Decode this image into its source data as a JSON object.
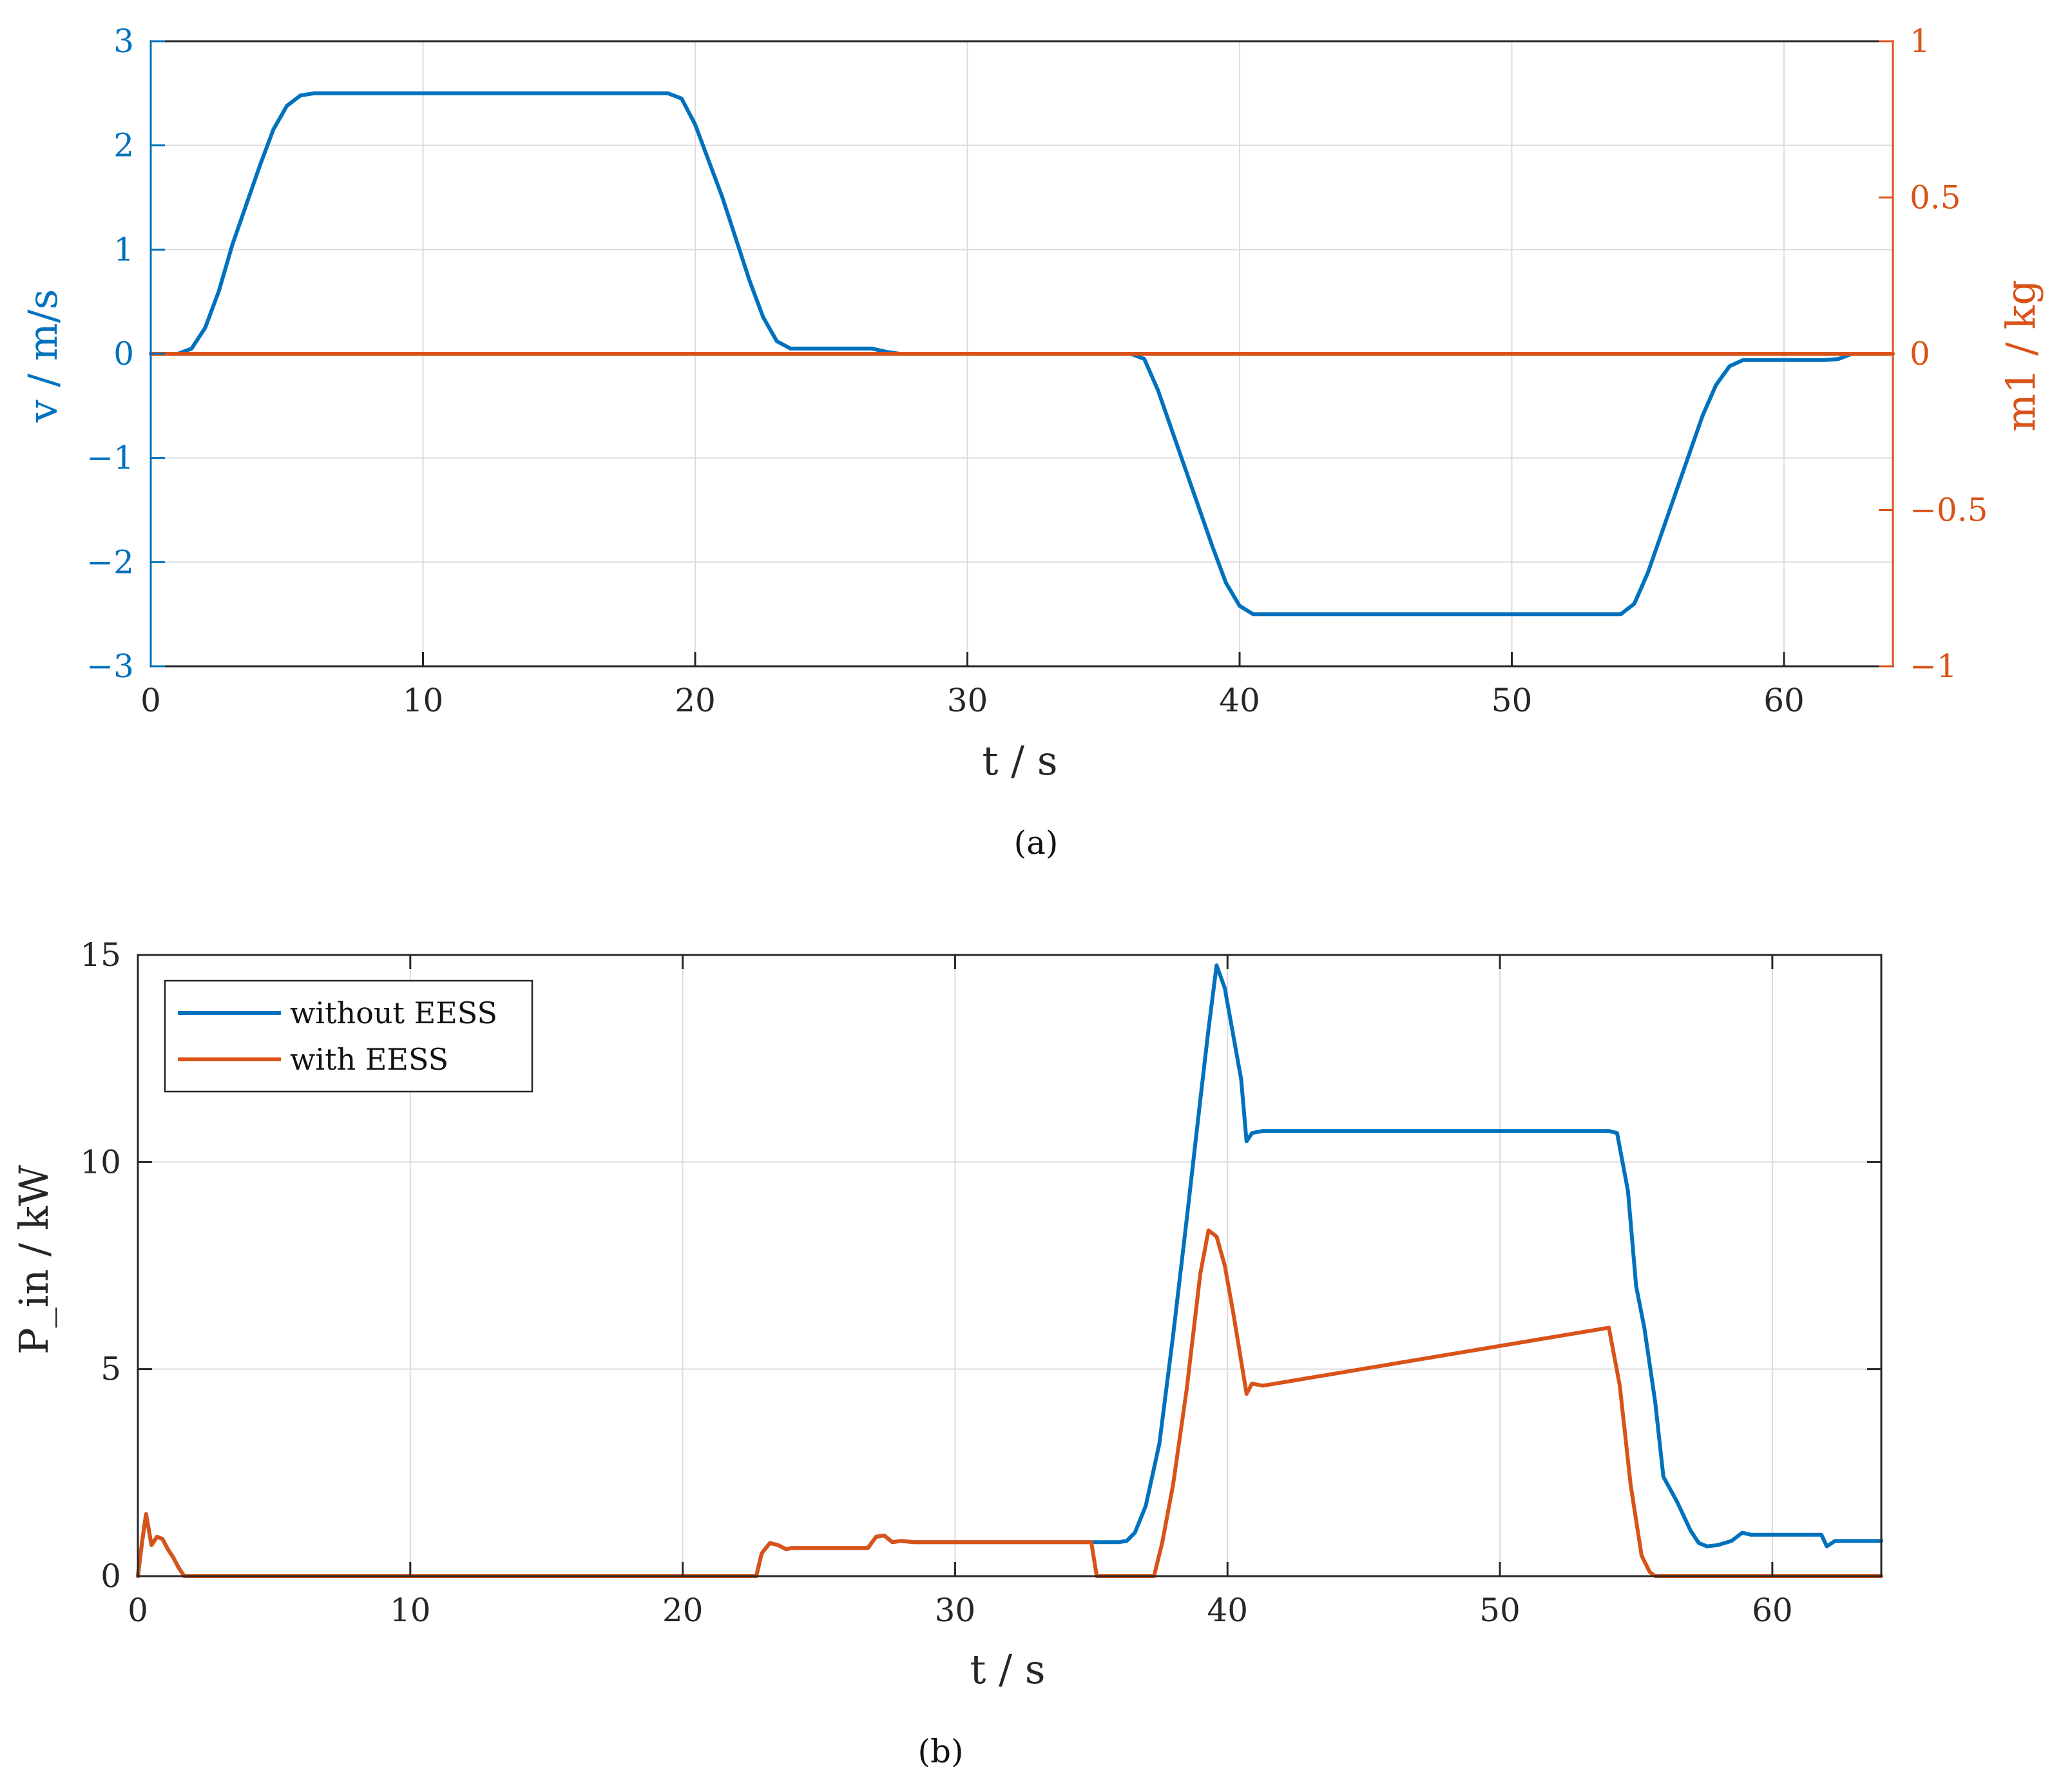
{
  "chart_data": [
    {
      "type": "line",
      "caption": "(a)",
      "xlabel": "t / s",
      "ylabel_left": "v / m/s",
      "ylabel_right": "m1 / kg",
      "xlim": [
        0,
        64
      ],
      "ylim_left": [
        -3,
        3
      ],
      "ylim_right": [
        -1,
        1
      ],
      "x_ticks": [
        "0",
        "10",
        "20",
        "30",
        "40",
        "50",
        "60"
      ],
      "y_ticks_left": [
        "3",
        "2",
        "1",
        "0",
        "−1",
        "−2",
        "−3"
      ],
      "y_ticks_right": [
        "1",
        "0.5",
        "0",
        "−0.5",
        "−1"
      ],
      "grid": true,
      "colors": {
        "left": "#0072BD",
        "right": "#D95319"
      },
      "series": [
        {
          "axis": "left",
          "color": "#0072BD",
          "x": [
            0,
            1,
            1.5,
            2,
            2.5,
            3,
            4,
            4.5,
            5,
            5.5,
            6,
            19,
            19.5,
            20,
            21,
            22,
            22.5,
            23,
            23.5,
            24,
            26.5,
            27,
            27.5,
            36,
            36.5,
            37,
            38,
            39,
            39.5,
            40,
            40.5,
            41,
            54,
            54.5,
            55,
            56,
            57,
            57.5,
            58,
            58.5,
            59,
            61.5,
            62,
            62.5,
            64
          ],
          "y": [
            0,
            0,
            0.05,
            0.25,
            0.6,
            1.05,
            1.8,
            2.15,
            2.38,
            2.48,
            2.5,
            2.5,
            2.45,
            2.2,
            1.5,
            0.7,
            0.35,
            0.12,
            0.05,
            0.05,
            0.05,
            0.02,
            0,
            0,
            -0.05,
            -0.35,
            -1.1,
            -1.85,
            -2.2,
            -2.42,
            -2.5,
            -2.5,
            -2.5,
            -2.4,
            -2.1,
            -1.35,
            -0.6,
            -0.3,
            -0.12,
            -0.06,
            -0.06,
            -0.06,
            -0.05,
            0,
            0
          ]
        },
        {
          "axis": "right",
          "color": "#D95319",
          "x": [
            0,
            64
          ],
          "y": [
            0,
            0
          ]
        }
      ]
    },
    {
      "type": "line",
      "caption": "(b)",
      "xlabel": "t / s",
      "ylabel": "P_in / kW",
      "xlim": [
        0,
        64
      ],
      "ylim": [
        0,
        15
      ],
      "x_ticks": [
        "0",
        "10",
        "20",
        "30",
        "40",
        "50",
        "60"
      ],
      "y_ticks": [
        "15",
        "10",
        "5",
        "0"
      ],
      "grid": true,
      "legend_position": "top-left",
      "series": [
        {
          "name": "without EESS",
          "color": "#0072BD",
          "x": [
            0,
            0.15,
            0.3,
            0.5,
            0.7,
            0.9,
            1.1,
            1.3,
            1.5,
            1.7,
            1.9,
            2.1,
            22.7,
            22.9,
            23.2,
            23.5,
            23.8,
            24.0,
            24.5,
            26.8,
            27.1,
            27.4,
            27.7,
            28.0,
            28.5,
            36.0,
            36.3,
            36.6,
            37.0,
            37.5,
            38.0,
            38.5,
            39.0,
            39.3,
            39.6,
            39.9,
            40.2,
            40.5,
            40.7,
            40.9,
            41.3,
            54.0,
            54.3,
            54.7,
            55.0,
            55.3,
            55.7,
            56.0,
            56.5,
            57.0,
            57.3,
            57.6,
            58.0,
            58.5,
            58.9,
            59.2,
            61.5,
            61.8,
            62.0,
            62.3,
            63.0,
            64
          ],
          "y": [
            0,
            0.8,
            1.5,
            0.75,
            0.95,
            0.9,
            0.65,
            0.45,
            0.2,
            0,
            0,
            0,
            0,
            0.55,
            0.8,
            0.75,
            0.65,
            0.68,
            0.68,
            0.68,
            0.95,
            0.98,
            0.82,
            0.85,
            0.82,
            0.82,
            0.85,
            1.05,
            1.7,
            3.2,
            5.8,
            8.6,
            11.5,
            13.2,
            14.75,
            14.2,
            13.1,
            12.0,
            10.5,
            10.7,
            10.75,
            10.75,
            10.7,
            9.3,
            7.0,
            6.0,
            4.2,
            2.4,
            1.8,
            1.1,
            0.8,
            0.72,
            0.75,
            0.85,
            1.05,
            1.0,
            1.0,
            1.0,
            0.72,
            0.85,
            0.85,
            0.85
          ]
        },
        {
          "name": "with EESS",
          "color": "#D95319",
          "x": [
            0,
            0.15,
            0.3,
            0.5,
            0.7,
            0.9,
            1.1,
            1.3,
            1.5,
            1.7,
            1.9,
            2.1,
            22.7,
            22.9,
            23.2,
            23.5,
            23.8,
            24.0,
            24.5,
            26.8,
            27.1,
            27.4,
            27.7,
            28.0,
            28.5,
            35.0,
            35.2,
            37.3,
            37.6,
            38.0,
            38.5,
            39.0,
            39.3,
            39.6,
            39.9,
            40.2,
            40.5,
            40.7,
            40.9,
            41.3,
            54.0,
            54.4,
            54.8,
            55.2,
            55.5,
            55.7,
            64
          ],
          "y": [
            0,
            0.8,
            1.5,
            0.75,
            0.95,
            0.9,
            0.65,
            0.45,
            0.2,
            0,
            0,
            0,
            0,
            0.55,
            0.8,
            0.75,
            0.65,
            0.68,
            0.68,
            0.68,
            0.95,
            0.98,
            0.82,
            0.85,
            0.82,
            0.82,
            0,
            0,
            0.8,
            2.2,
            4.5,
            7.3,
            8.35,
            8.2,
            7.5,
            6.4,
            5.2,
            4.4,
            4.65,
            4.6,
            6.0,
            4.6,
            2.2,
            0.5,
            0.1,
            0,
            0
          ]
        }
      ]
    }
  ]
}
